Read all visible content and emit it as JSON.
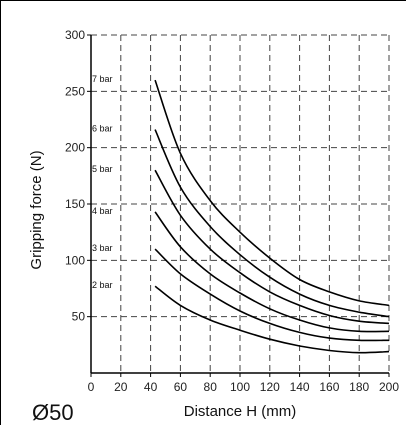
{
  "chart_data": {
    "type": "line",
    "title": "",
    "model_label": "Ø50",
    "xlabel": "Distance H (mm)",
    "ylabel": "Gripping force (N)",
    "xlim": [
      0,
      200
    ],
    "ylim": [
      0,
      300
    ],
    "xticks": [
      0,
      20,
      40,
      60,
      80,
      100,
      120,
      140,
      160,
      180,
      200
    ],
    "yticks": [
      50,
      100,
      150,
      200,
      250,
      300
    ],
    "grid": true,
    "legend": "none",
    "x": [
      43,
      60,
      80,
      100,
      120,
      140,
      160,
      180,
      200
    ],
    "series": [
      {
        "name": "7 bar",
        "values": [
          260,
          195,
          153,
          125,
          102,
          83,
          72,
          64,
          60
        ]
      },
      {
        "name": "6 bar",
        "values": [
          216,
          165,
          130,
          105,
          85,
          70,
          60,
          54,
          50
        ]
      },
      {
        "name": "5 bar",
        "values": [
          180,
          140,
          110,
          89,
          72,
          60,
          51,
          46,
          44
        ]
      },
      {
        "name": "4 bar",
        "values": [
          143,
          112,
          88,
          71,
          57,
          47,
          40,
          37,
          37
        ]
      },
      {
        "name": "3 bar",
        "values": [
          110,
          88,
          70,
          55,
          44,
          36,
          31,
          29,
          29
        ]
      },
      {
        "name": "2 bar",
        "values": [
          77,
          60,
          47,
          38,
          30,
          24,
          20,
          18,
          19
        ]
      }
    ]
  }
}
